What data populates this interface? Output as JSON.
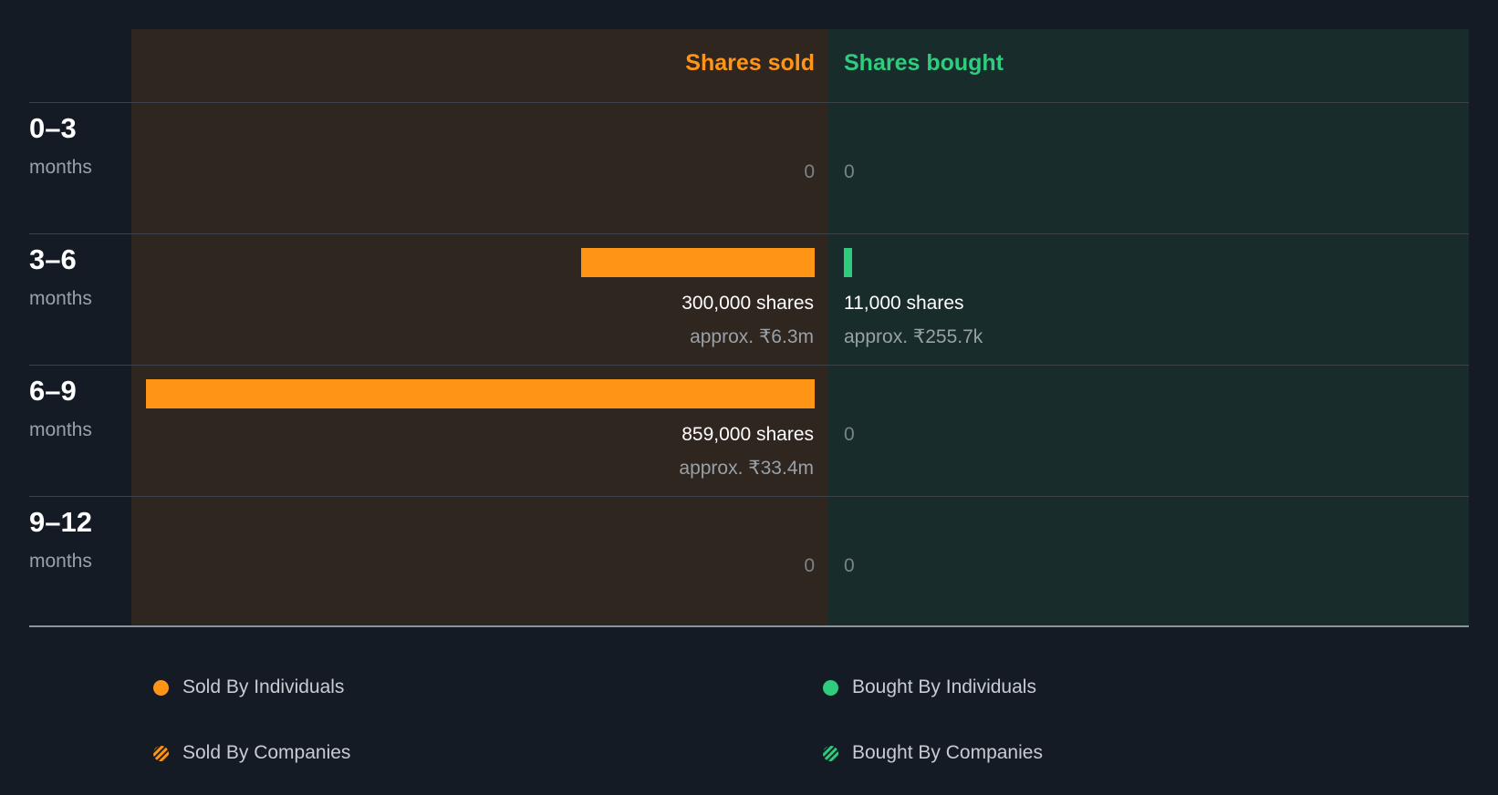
{
  "chart_data": {
    "type": "bar",
    "orientation": "horizontal-diverging",
    "headers": {
      "sold": "Shares sold",
      "bought": "Shares bought"
    },
    "periods": [
      {
        "label": "0–3",
        "unit": "months",
        "sold_shares": 0,
        "bought_shares": 0,
        "sold_text": "0",
        "bought_text": "0",
        "sold_approx": "",
        "bought_approx": ""
      },
      {
        "label": "3–6",
        "unit": "months",
        "sold_shares": 300000,
        "bought_shares": 11000,
        "sold_text": "300,000 shares",
        "bought_text": "11,000 shares",
        "sold_approx": "approx. ₹6.3m",
        "bought_approx": "approx. ₹255.7k"
      },
      {
        "label": "6–9",
        "unit": "months",
        "sold_shares": 859000,
        "bought_shares": 0,
        "sold_text": "859,000 shares",
        "bought_text": "0",
        "sold_approx": "approx. ₹33.4m",
        "bought_approx": ""
      },
      {
        "label": "9–12",
        "unit": "months",
        "sold_shares": 0,
        "bought_shares": 0,
        "sold_text": "0",
        "bought_text": "0",
        "sold_approx": "",
        "bought_approx": ""
      }
    ],
    "max_shares": 859000,
    "colors": {
      "sold": "#ff9416",
      "bought": "#2fcc7e"
    },
    "legend": [
      {
        "label": "Sold By Individuals",
        "kind": "sold-individuals"
      },
      {
        "label": "Bought By Individuals",
        "kind": "bought-individuals"
      },
      {
        "label": "Sold By Companies",
        "kind": "sold-companies"
      },
      {
        "label": "Bought By Companies",
        "kind": "bought-companies"
      }
    ]
  }
}
